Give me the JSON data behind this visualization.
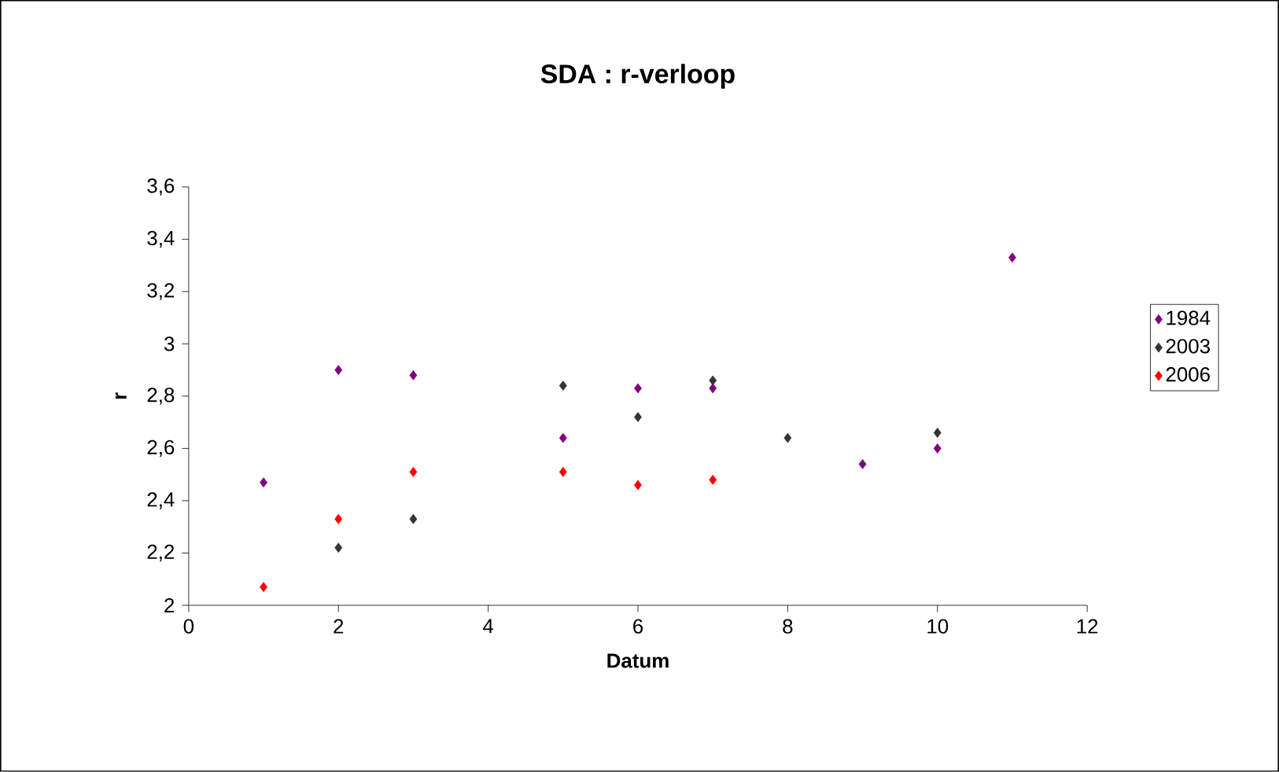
{
  "chart_data": {
    "type": "scatter",
    "title": "SDA : r-verloop",
    "xlabel": "Datum",
    "ylabel": "r",
    "marker": "diamond",
    "legend": "right",
    "grid": false,
    "xlim": [
      0,
      12
    ],
    "xticks": [
      0,
      2,
      4,
      6,
      8,
      10,
      12
    ],
    "ylim": [
      2,
      3.6
    ],
    "yticks": [
      2,
      {
        "value": 2.2,
        "label": "2,2"
      },
      {
        "value": 2.4,
        "label": "2,4"
      },
      {
        "value": 2.6,
        "label": "2,6"
      },
      {
        "value": 2.8,
        "label": "2,8"
      },
      3,
      {
        "value": 3.2,
        "label": "3,2"
      },
      {
        "value": 3.4,
        "label": "3,4"
      },
      {
        "value": 3.6,
        "label": "3,6"
      }
    ],
    "series": [
      {
        "name": "1984",
        "color": "#800080",
        "x": [
          1,
          2,
          3,
          5,
          6,
          7,
          9,
          10,
          11
        ],
        "values": [
          2.47,
          2.9,
          2.88,
          2.64,
          2.83,
          2.83,
          2.54,
          2.6,
          3.33
        ]
      },
      {
        "name": "2003",
        "color": "#333333",
        "x": [
          2,
          3,
          5,
          6,
          7,
          8,
          10
        ],
        "values": [
          2.22,
          2.33,
          2.84,
          2.72,
          2.86,
          2.64,
          2.66
        ]
      },
      {
        "name": "2006",
        "color": "#ff0000",
        "x": [
          1,
          2,
          3,
          5,
          6,
          7
        ],
        "values": [
          2.07,
          2.33,
          2.51,
          2.51,
          2.46,
          2.48
        ]
      }
    ]
  }
}
